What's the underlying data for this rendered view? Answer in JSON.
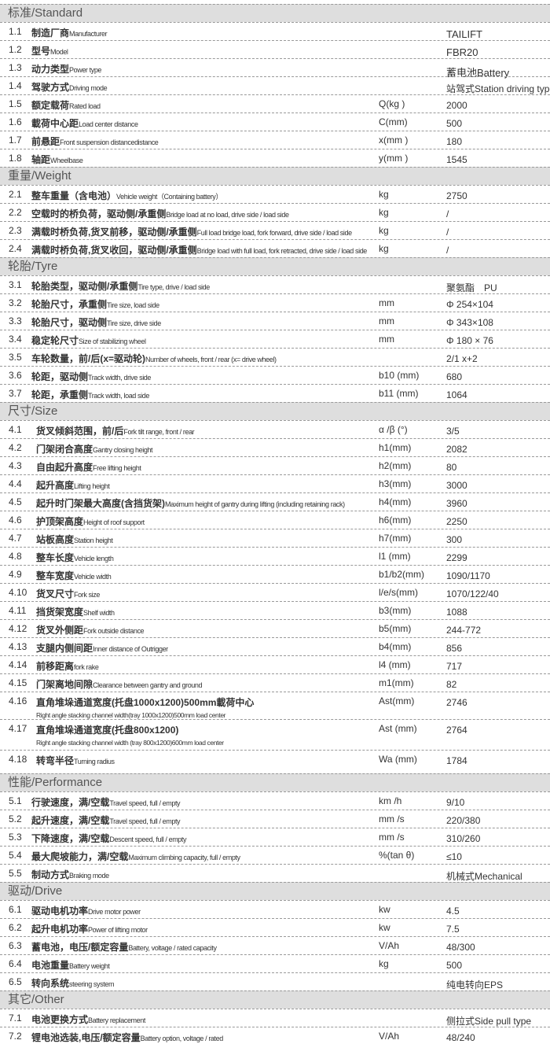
{
  "sections": [
    {
      "title": "标准/Standard",
      "rows": [
        {
          "num": "1.1",
          "zh": "制造厂商",
          "en": "Manufacturer",
          "unit": "",
          "value": "TAILIFT"
        },
        {
          "num": "1.2",
          "zh": "型号",
          "en": "Model",
          "unit": "",
          "value": "FBR20"
        },
        {
          "num": "1.3",
          "zh": "动力类型",
          "en": "Power type",
          "unit": "",
          "value": "蓄电池Battery"
        },
        {
          "num": "1.4",
          "zh": "驾驶方式",
          "en": "Driving mode",
          "unit": "",
          "value": "站驾式Station driving type"
        },
        {
          "num": "1.5",
          "zh": "额定载荷",
          "en": "Rated load",
          "unit": "Q(kg )",
          "value": "2000"
        },
        {
          "num": "1.6",
          "zh": "載荷中心距",
          "en": "Load center distance",
          "unit": "C(mm)",
          "value": "500"
        },
        {
          "num": "1.7",
          "zh": "前悬距",
          "en": "Front suspension distancedistance",
          "unit": "x(mm )",
          "value": "180"
        },
        {
          "num": "1.8",
          "zh": "轴距",
          "en": "Wheelbase",
          "unit": "y(mm )",
          "value": "1545"
        }
      ]
    },
    {
      "title": "重量/Weight",
      "rows": [
        {
          "num": "2.1",
          "zh": "整车重量（含电池）",
          "en": "Vehicle weight（Containing battery）",
          "unit": "kg",
          "value": "2750"
        },
        {
          "num": "2.2",
          "zh": "空载时的桥负荷，驱动侧/承重侧",
          "en": "Bridge load at no load, drive side / load side",
          "unit": "kg",
          "value": "/"
        },
        {
          "num": "2.3",
          "zh": "满载时桥负荷,货叉前移，驱动侧/承重侧",
          "en": "Full load bridge load, fork forward, drive side / load side",
          "unit": "kg",
          "value": "/"
        },
        {
          "num": "2.4",
          "zh": "满载时桥负荷,货叉收回，驱动侧/承重侧",
          "en": "Bridge load with full load, fork retracted, drive side / load side",
          "unit": "kg",
          "value": "/"
        }
      ]
    },
    {
      "title": "轮胎/Tyre",
      "rows": [
        {
          "num": "3.1",
          "zh": "轮胎类型，驱动侧/承重侧",
          "en": "Tire type, drive / load side",
          "unit": "",
          "value": "聚氨酯　PU"
        },
        {
          "num": "3.2",
          "zh": "轮胎尺寸，承重侧",
          "en": "Tire size, load side",
          "unit": "mm",
          "value": "Φ 254×104"
        },
        {
          "num": "3.3",
          "zh": "轮胎尺寸，驱动侧",
          "en": "Tire size, drive side",
          "unit": "mm",
          "value": "Φ 343×108"
        },
        {
          "num": "3.4",
          "zh": "稳定轮尺寸",
          "en": "Size of stabilizing wheel",
          "unit": "mm",
          "value": "Φ 180 × 76"
        },
        {
          "num": "3.5",
          "zh": "车轮数量，前/后(x=驱动轮)",
          "en": "Number of wheels, front / rear (x= drive wheel)",
          "unit": "",
          "value": "2/1 x+2"
        },
        {
          "num": "3.6",
          "zh": "轮距，驱动侧",
          "en": "Track width, drive side",
          "unit": "b10 (mm)",
          "value": "680"
        },
        {
          "num": "3.7",
          "zh": "轮距，承重侧",
          "en": "Track width, load side",
          "unit": "b11 (mm)",
          "value": "1064"
        }
      ]
    },
    {
      "title": "尺寸/Size",
      "rows": [
        {
          "num": "4.1",
          "zh": "货叉倾斜范围，前/后",
          "en": "Fork tilt range, front / rear",
          "unit": "α /β (°)",
          "value": "3/5"
        },
        {
          "num": "4.2",
          "zh": "门架闭合高度",
          "en": "Gantry closing height",
          "unit": "h1(mm)",
          "value": "2082"
        },
        {
          "num": "4.3",
          "zh": "自由起升高度",
          "en": "Free lifting height",
          "unit": "h2(mm)",
          "value": "80"
        },
        {
          "num": "4.4",
          "zh": "起升高度",
          "en": "Lifting height",
          "unit": "h3(mm)",
          "value": "3000"
        },
        {
          "num": "4.5",
          "zh": "起升时门架最大高度(含挡货架)",
          "en": "Maximum height of gantry during lifting (including retaining rack)",
          "unit": "h4(mm)",
          "value": "3960"
        },
        {
          "num": "4.6",
          "zh": "护顶架高度",
          "en": "Height of roof support",
          "unit": "h6(mm)",
          "value": "2250"
        },
        {
          "num": "4.7",
          "zh": "站板高度",
          "en": "Station height",
          "unit": "h7(mm)",
          "value": "300"
        },
        {
          "num": "4.8",
          "zh": "整车长度",
          "en": "Vehicle length",
          "unit": "l1 (mm)",
          "value": "2299"
        },
        {
          "num": "4.9",
          "zh": "整车宽度",
          "en": "Vehicle width",
          "unit": "b1/b2(mm)",
          "value": "1090/1170"
        },
        {
          "num": "4.10",
          "zh": "货叉尺寸",
          "en": "Fork size",
          "unit": "l/e/s(mm)",
          "value": "1070/122/40"
        },
        {
          "num": "4.11",
          "zh": "挡货架宽度",
          "en": "Shelf width",
          "unit": "b3(mm)",
          "value": "1088"
        },
        {
          "num": "4.12",
          "zh": "货叉外侧距",
          "en": "Fork outside distance",
          "unit": "b5(mm)",
          "value": "244-772"
        },
        {
          "num": "4.13",
          "zh": "支腿内侧间距",
          "en": "Inner distance of Outrigger",
          "unit": "b4(mm)",
          "value": "856"
        },
        {
          "num": "4.14",
          "zh": "前移距离",
          "en": "fork rake",
          "unit": "l4 (mm)",
          "value": "717"
        },
        {
          "num": "4.15",
          "zh": "门架离地间隙",
          "en": "Clearance between gantry and ground",
          "unit": "m1(mm)",
          "value": "82"
        },
        {
          "num": "4.16",
          "zh": "直角堆垛通道宽度(托盘1000x1200)500mm載荷中心",
          "en2": "Right angle stacking channel width(tray 1000x1200)500mm load center",
          "unit": "Ast(mm)",
          "value": "2746",
          "cls": "tall1"
        },
        {
          "num": "4.17",
          "zh": "直角堆垛通道宽度(托盘800x1200)",
          "en2": "Right angle stacking channel width (tray 800x1200)600mm load center",
          "unit": "Ast (mm)",
          "value": "2764",
          "cls": "tall2"
        },
        {
          "num": "4.18",
          "zh": "转弯半径",
          "en": "Turning radius",
          "unit": "Wa (mm)",
          "value": "1784",
          "cls": "r418"
        }
      ]
    },
    {
      "title": "性能/Performance",
      "rows": [
        {
          "num": "5.1",
          "zh": "行驶速度，满/空载",
          "en": "Travel speed, full / empty",
          "unit": "km /h",
          "value": "9/10"
        },
        {
          "num": "5.2",
          "zh": "起升速度，满/空载",
          "en": "Travel speed, full / empty",
          "unit": "mm /s",
          "value": "220/380"
        },
        {
          "num": "5.3",
          "zh": "下降速度，满/空载",
          "en": "Descent speed, full / empty",
          "unit": "mm /s",
          "value": "310/260"
        },
        {
          "num": "5.4",
          "zh": "最大爬坡能力，满/空载",
          "en": "Maximum climbing capacity, full / empty",
          "unit": "%(tan θ)",
          "value": "≤10"
        },
        {
          "num": "5.5",
          "zh": "制动方式",
          "en": "Braking mode",
          "unit": "",
          "value": "机械式Mechanical"
        }
      ]
    },
    {
      "title": "驱动/Drive",
      "rows": [
        {
          "num": "6.1",
          "zh": "驱动电机功率",
          "en": "Drive motor power",
          "unit": "kw",
          "value": "4.5"
        },
        {
          "num": "6.2",
          "zh": "起升电机功率",
          "en": "Power of lifting motor",
          "unit": "kw",
          "value": "7.5"
        },
        {
          "num": "6.3",
          "zh": "蓄电池，电压/额定容量",
          "en": "Battery, voltage / rated capacity",
          "unit": "V/Ah",
          "value": "48/300"
        },
        {
          "num": "6.4",
          "zh": "电池重量",
          "en": "Battery weight",
          "unit": "kg",
          "value": "500"
        },
        {
          "num": "6.5",
          "zh": "转向系统",
          "en": "steering system",
          "unit": "",
          "value": "纯电转向EPS"
        }
      ]
    },
    {
      "title": "其它/Other",
      "rows": [
        {
          "num": "7.1",
          "zh": "电池更换方式",
          "en": "Battery replacement",
          "unit": "",
          "value": "侧拉式Side pull type"
        },
        {
          "num": "7.2",
          "zh": "锂电池选装,电压/额定容量",
          "en": "Battery option, voltage / rated",
          "unit": "V/Ah",
          "value": "48/240"
        }
      ]
    }
  ]
}
